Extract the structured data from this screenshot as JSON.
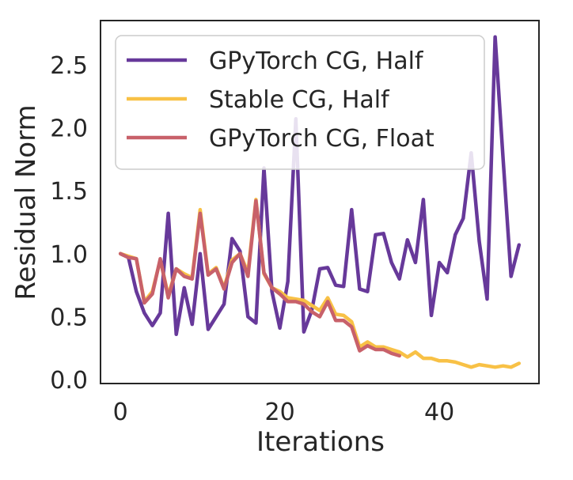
{
  "chart_data": {
    "type": "line",
    "xlabel": "Iterations",
    "ylabel": "Residual Norm",
    "xlim": [
      -2.5,
      52.5
    ],
    "ylim": [
      -0.03,
      2.85
    ],
    "x_ticks": [
      0,
      20,
      40
    ],
    "x_tick_labels": [
      "0",
      "20",
      "40"
    ],
    "y_ticks": [
      0.0,
      0.5,
      1.0,
      1.5,
      2.0,
      2.5
    ],
    "y_tick_labels": [
      "0.0",
      "0.5",
      "1.0",
      "1.5",
      "2.0",
      "2.5"
    ],
    "grid": false,
    "legend_position": "top-left",
    "series": [
      {
        "name": "GPyTorch CG, Half",
        "color": "#67399a",
        "x": [
          0,
          1,
          2,
          3,
          4,
          5,
          6,
          7,
          8,
          9,
          10,
          11,
          12,
          13,
          14,
          15,
          16,
          17,
          18,
          19,
          20,
          21,
          22,
          23,
          24,
          25,
          26,
          27,
          28,
          29,
          30,
          31,
          32,
          33,
          34,
          35,
          36,
          37,
          38,
          39,
          40,
          41,
          42,
          43,
          44,
          45,
          46,
          47,
          48,
          49,
          50
        ],
        "y": [
          1.0,
          0.97,
          0.7,
          0.53,
          0.43,
          0.53,
          1.32,
          0.36,
          0.73,
          0.44,
          1.0,
          0.4,
          0.5,
          0.6,
          1.12,
          1.02,
          0.5,
          0.45,
          1.68,
          0.7,
          0.41,
          0.78,
          2.07,
          0.38,
          0.55,
          0.88,
          0.89,
          0.75,
          0.74,
          1.35,
          0.72,
          0.7,
          1.15,
          1.16,
          0.93,
          0.8,
          1.11,
          0.93,
          1.43,
          0.51,
          0.93,
          0.85,
          1.15,
          1.28,
          1.8,
          1.1,
          0.64,
          2.72,
          1.75,
          0.82,
          1.07
        ]
      },
      {
        "name": "Stable CG, Half",
        "color": "#f8c146",
        "x": [
          0,
          1,
          2,
          3,
          4,
          5,
          6,
          7,
          8,
          9,
          10,
          11,
          12,
          13,
          14,
          15,
          16,
          17,
          18,
          19,
          20,
          21,
          22,
          23,
          24,
          25,
          26,
          27,
          28,
          29,
          30,
          31,
          32,
          33,
          34,
          35,
          36,
          37,
          38,
          39,
          40,
          41,
          42,
          43,
          44,
          45,
          46,
          47,
          48,
          49,
          50
        ],
        "y": [
          1.0,
          0.98,
          0.96,
          0.62,
          0.7,
          0.95,
          0.67,
          0.88,
          0.84,
          0.81,
          1.35,
          0.84,
          0.89,
          0.73,
          0.95,
          1.0,
          0.85,
          1.43,
          0.84,
          0.73,
          0.7,
          0.65,
          0.64,
          0.63,
          0.59,
          0.55,
          0.65,
          0.52,
          0.51,
          0.46,
          0.26,
          0.3,
          0.26,
          0.26,
          0.24,
          0.22,
          0.18,
          0.22,
          0.17,
          0.17,
          0.15,
          0.15,
          0.14,
          0.12,
          0.1,
          0.12,
          0.11,
          0.1,
          0.11,
          0.1,
          0.13
        ]
      },
      {
        "name": "GPyTorch CG, Float",
        "color": "#c8616a",
        "x": [
          0,
          1,
          2,
          3,
          4,
          5,
          6,
          7,
          8,
          9,
          10,
          11,
          12,
          13,
          14,
          15,
          16,
          17,
          18,
          19,
          20,
          21,
          22,
          23,
          24,
          25,
          26,
          27,
          28,
          29,
          30,
          31,
          32,
          33,
          34,
          35
        ],
        "y": [
          1.0,
          0.97,
          0.96,
          0.61,
          0.68,
          0.96,
          0.65,
          0.88,
          0.82,
          0.8,
          1.32,
          0.83,
          0.88,
          0.72,
          0.93,
          1.0,
          0.82,
          1.42,
          0.85,
          0.73,
          0.68,
          0.62,
          0.62,
          0.6,
          0.54,
          0.5,
          0.62,
          0.47,
          0.47,
          0.42,
          0.23,
          0.27,
          0.24,
          0.24,
          0.21,
          0.19
        ]
      }
    ]
  }
}
